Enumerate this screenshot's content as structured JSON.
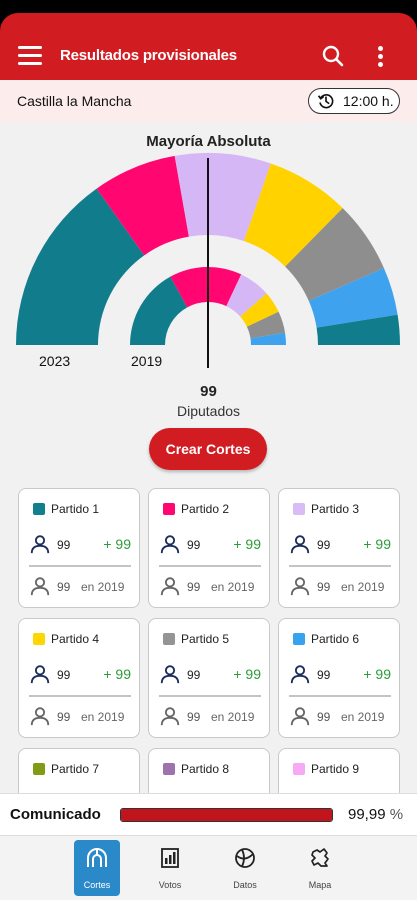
{
  "appbar": {
    "title": "Resultados provisionales",
    "menu_icon": "hamburger-icon",
    "search_icon": "search-icon",
    "more_icon": "more-vertical-icon"
  },
  "region": {
    "name": "Castilla la Mancha",
    "time": "12:00 h.",
    "time_icon": "clock-history-icon"
  },
  "chart_data": {
    "type": "pie",
    "title": "Mayoría Absoluta",
    "total_seats": "99",
    "seats_label": "Diputados",
    "series": [
      {
        "name": "2023",
        "values": [
          30,
          14,
          16,
          14,
          12,
          8,
          5
        ]
      },
      {
        "name": "2019",
        "values": [
          34,
          30,
          13,
          9,
          9,
          5
        ]
      }
    ],
    "party_colors": [
      "#117d8c",
      "#ff0670",
      "#d6b7f5",
      "#ffd200",
      "#8e8e8e",
      "#3ea2ef"
    ]
  },
  "create_button": "Crear Cortes",
  "parties": [
    {
      "name": "Partido 1",
      "color": "#127f8c",
      "seats": "99",
      "delta": "+ 99",
      "prev": "99",
      "prev_label": "en 2019"
    },
    {
      "name": "Partido 2",
      "color": "#ff0670",
      "seats": "99",
      "delta": "+ 99",
      "prev": "99",
      "prev_label": "en 2019"
    },
    {
      "name": "Partido 3",
      "color": "#d8bcf5",
      "seats": "99",
      "delta": "+ 99",
      "prev": "99",
      "prev_label": "en 2019"
    },
    {
      "name": "Partido 4",
      "color": "#ffd600",
      "seats": "99",
      "delta": "+ 99",
      "prev": "99",
      "prev_label": "en 2019"
    },
    {
      "name": "Partido 5",
      "color": "#949494",
      "seats": "99",
      "delta": "+ 99",
      "prev": "99",
      "prev_label": "en 2019"
    },
    {
      "name": "Partido 6",
      "color": "#37a3ef",
      "seats": "99",
      "delta": "+ 99",
      "prev": "99",
      "prev_label": "en 2019"
    },
    {
      "name": "Partido 7",
      "color": "#829b16",
      "seats": "",
      "delta": "",
      "prev": "",
      "prev_label": ""
    },
    {
      "name": "Partido 8",
      "color": "#9d72ad",
      "seats": "",
      "delta": "",
      "prev": "",
      "prev_label": ""
    },
    {
      "name": "Partido 9",
      "color": "#f8a9f3",
      "seats": "",
      "delta": "",
      "prev": "",
      "prev_label": ""
    }
  ],
  "progress": {
    "label": "Comunicado",
    "value": "99,99",
    "unit": "%",
    "fraction": 0.9999
  },
  "nav": [
    {
      "label": "Cortes",
      "icon": "parliament-icon",
      "active": true
    },
    {
      "label": "Votos",
      "icon": "ballot-chart-icon",
      "active": false
    },
    {
      "label": "Datos",
      "icon": "globe-data-icon",
      "active": false
    },
    {
      "label": "Mapa",
      "icon": "region-map-icon",
      "active": false
    }
  ]
}
